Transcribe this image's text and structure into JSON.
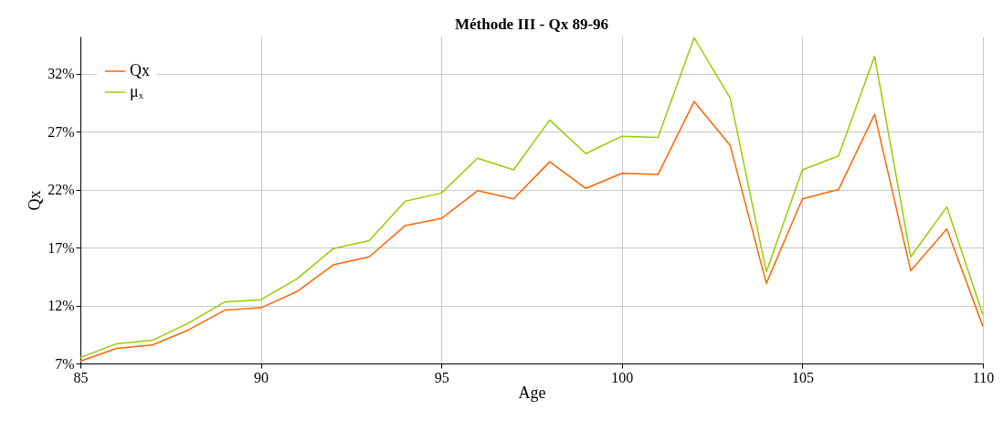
{
  "chart_data": {
    "type": "line",
    "title": "Méthode III - Qx 89-96",
    "xlabel": "Age",
    "ylabel": "Qx",
    "x": [
      85,
      86,
      87,
      88,
      89,
      90,
      91,
      92,
      93,
      94,
      95,
      96,
      97,
      98,
      99,
      100,
      101,
      102,
      103,
      104,
      105,
      106,
      107,
      108,
      109,
      110
    ],
    "series": [
      {
        "name": "Qx",
        "color": "#ff6600",
        "values": [
          7.2,
          8.3,
          8.6,
          9.9,
          11.6,
          11.8,
          13.2,
          15.5,
          16.2,
          18.9,
          19.5,
          21.9,
          21.2,
          24.4,
          22.1,
          23.4,
          23.3,
          29.6,
          25.8,
          13.9,
          21.2,
          22.0,
          28.5,
          15.0,
          18.6,
          10.2
        ]
      },
      {
        "name": "μₓ",
        "color": "#99cc00",
        "values": [
          7.5,
          8.7,
          9.0,
          10.5,
          12.3,
          12.5,
          14.3,
          16.9,
          17.6,
          21.0,
          21.7,
          24.7,
          23.7,
          28.0,
          25.1,
          26.6,
          26.5,
          35.1,
          29.9,
          14.9,
          23.7,
          24.9,
          33.5,
          16.2,
          20.5,
          11.2
        ]
      }
    ],
    "xlim": [
      85,
      110
    ],
    "xticks": [
      85,
      90,
      95,
      100,
      105,
      110
    ],
    "ylim": [
      7,
      35.2
    ],
    "yticks": [
      {
        "value": 7,
        "label": "7%"
      },
      {
        "value": 12,
        "label": "12%"
      },
      {
        "value": 17,
        "label": "17%"
      },
      {
        "value": 22,
        "label": "22%"
      },
      {
        "value": 27,
        "label": "27%"
      },
      {
        "value": 32,
        "label": "32%"
      }
    ],
    "grid": true,
    "legend": "top left",
    "marker": "none",
    "line_style": "solid"
  }
}
